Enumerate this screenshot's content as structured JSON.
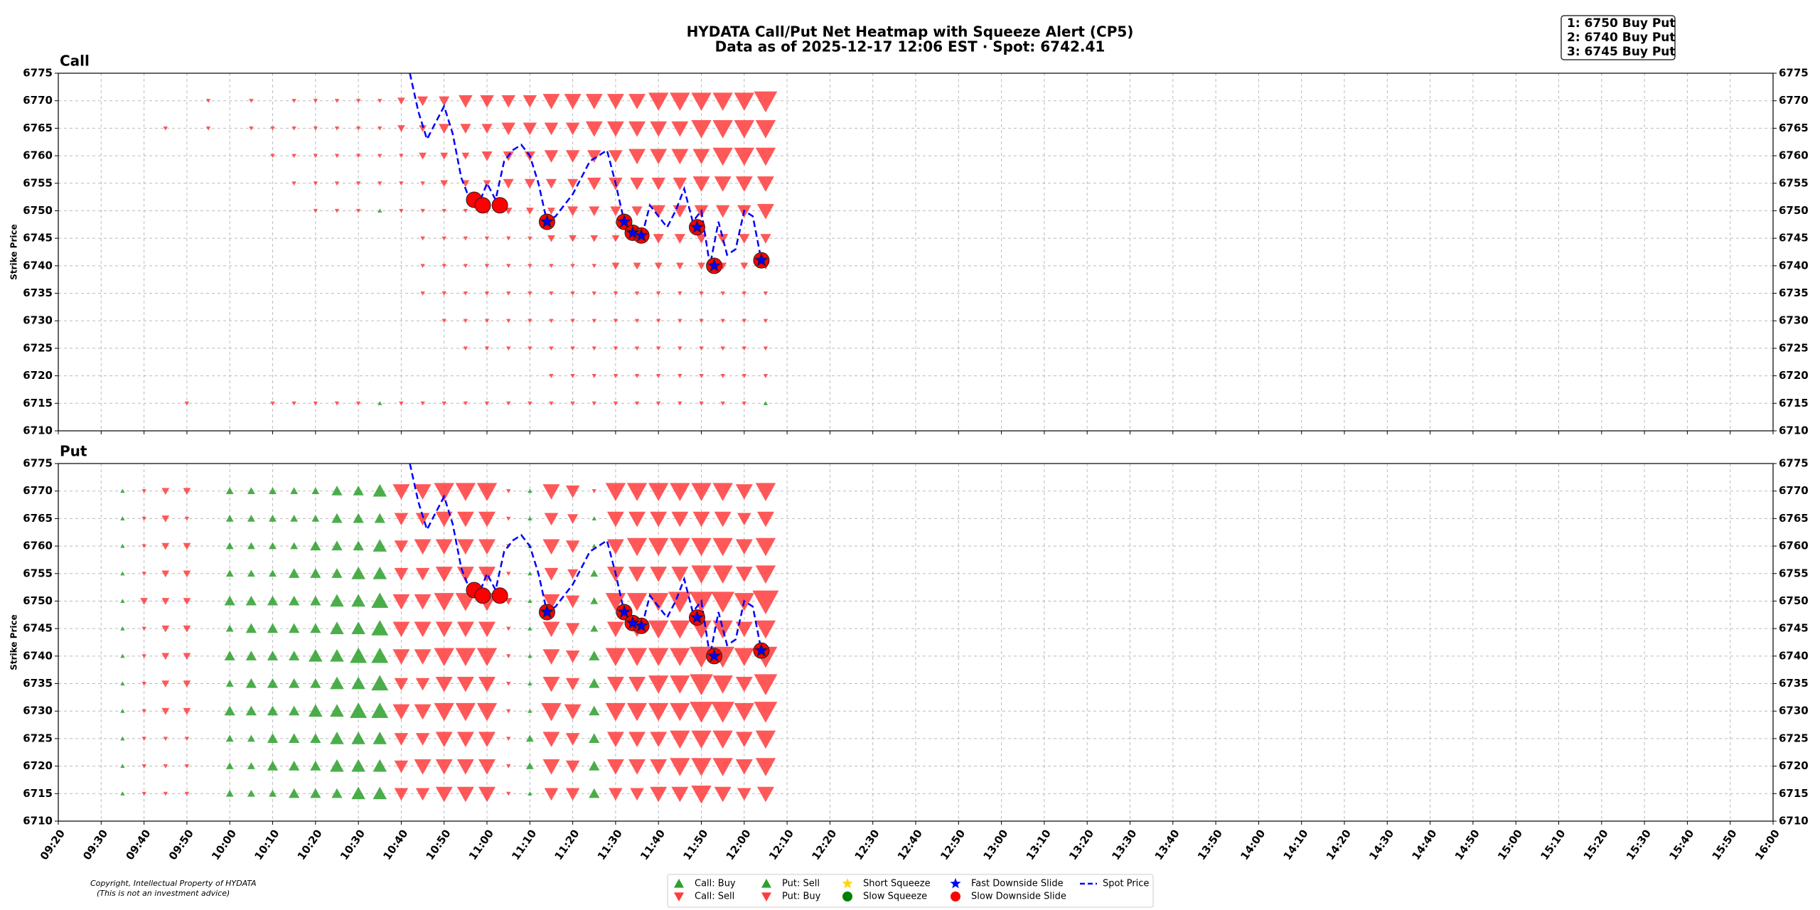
{
  "title": "HYDATA Call/Put Net Heatmap with Squeeze Alert (CP5)",
  "subtitle": "Data as of 2025-12-17 12:06 EST · Spot: 6742.41",
  "annotation": [
    "1: 6750 Buy Put",
    "2: 6740 Buy Put",
    "3: 6745 Buy Put"
  ],
  "footer": [
    "Copyright, Intellectual Property of HYDATA",
    "(This is not an investment advice)"
  ],
  "legend": [
    {
      "name": "Call: Buy",
      "color": "#2ca02c",
      "marker": "triangle-up"
    },
    {
      "name": "Call: Sell",
      "color": "#ff3b3b",
      "marker": "triangle-down"
    },
    {
      "name": "Put: Sell",
      "color": "#2ca02c",
      "marker": "triangle-up"
    },
    {
      "name": "Put: Buy",
      "color": "#ff3b3b",
      "marker": "triangle-down"
    },
    {
      "name": "Short Squeeze",
      "color": "#ffd700",
      "marker": "star"
    },
    {
      "name": "Slow Squeeze",
      "color": "#008000",
      "marker": "circle"
    },
    {
      "name": "Fast Downside Slide",
      "color": "#0000ff",
      "marker": "star"
    },
    {
      "name": "Slow Downside Slide",
      "color": "#ff0000",
      "marker": "circle"
    },
    {
      "name": "Spot Price",
      "color": "#0000ff",
      "marker": "dash"
    }
  ],
  "series": [
    {
      "name": "Spot Price",
      "kind": "line",
      "color": "#0000ff",
      "x": [
        "10:42",
        "10:44",
        "10:46",
        "10:48",
        "10:50",
        "10:52",
        "10:54",
        "10:56",
        "10:58",
        "11:00",
        "11:02",
        "11:04",
        "11:06",
        "11:08",
        "11:10",
        "11:12",
        "11:14",
        "11:16",
        "11:18",
        "11:20",
        "11:22",
        "11:24",
        "11:26",
        "11:28",
        "11:30",
        "11:32",
        "11:34",
        "11:36",
        "11:38",
        "11:40",
        "11:42",
        "11:44",
        "11:46",
        "11:48",
        "11:50",
        "11:52",
        "11:54",
        "11:56",
        "11:58",
        "12:00",
        "12:02",
        "12:04"
      ],
      "values": [
        6775,
        6768,
        6763,
        6766,
        6769,
        6764,
        6756,
        6752,
        6751,
        6755,
        6752,
        6759,
        6761,
        6762,
        6760,
        6755,
        6748,
        6749,
        6751,
        6753,
        6756,
        6759,
        6760,
        6761,
        6755,
        6748,
        6746,
        6745,
        6751,
        6749,
        6747,
        6750,
        6754,
        6748,
        6750,
        6740,
        6748,
        6742,
        6743,
        6750,
        6749,
        6741
      ]
    },
    {
      "name": "Slow Downside Slide",
      "kind": "circle",
      "color": "#ff0000",
      "x": [
        "10:57",
        "10:59",
        "11:03",
        "11:14",
        "11:32",
        "11:34",
        "11:36",
        "11:49",
        "11:53",
        "12:04"
      ],
      "values": [
        6752,
        6751,
        6751,
        6748,
        6748,
        6746,
        6745.5,
        6747,
        6740,
        6741
      ]
    },
    {
      "name": "Fast Downside Slide",
      "kind": "star",
      "color": "#0000ff",
      "x": [
        "11:14",
        "11:32",
        "11:34",
        "11:36",
        "11:49",
        "11:53",
        "12:04"
      ],
      "values": [
        6748,
        6748,
        6746,
        6745.5,
        6747,
        6740,
        6741
      ]
    }
  ],
  "chart_data": [
    {
      "type": "marker_heatmap",
      "title": "Call",
      "ylabel": "Strike Price",
      "up_color": "#2ca02c",
      "down_color": "#ff3b3b",
      "xlim": [
        "09:20",
        "16:00"
      ],
      "xticks": [
        "09:20",
        "09:30",
        "09:40",
        "09:50",
        "10:00",
        "10:10",
        "10:20",
        "10:30",
        "10:40",
        "10:50",
        "11:00",
        "11:10",
        "11:20",
        "11:30",
        "11:40",
        "11:50",
        "12:00",
        "12:10",
        "12:20",
        "12:30",
        "12:40",
        "12:50",
        "13:00",
        "13:10",
        "13:20",
        "13:30",
        "13:40",
        "13:50",
        "14:00",
        "14:10",
        "14:20",
        "14:30",
        "14:40",
        "14:50",
        "15:00",
        "15:10",
        "15:20",
        "15:30",
        "15:40",
        "15:50",
        "16:00"
      ],
      "ylim": [
        6710,
        6775
      ],
      "yticks": [
        6710,
        6715,
        6720,
        6725,
        6730,
        6735,
        6740,
        6745,
        6750,
        6755,
        6760,
        6765,
        6770,
        6775
      ],
      "times": [
        "09:35",
        "09:40",
        "09:45",
        "09:50",
        "09:55",
        "10:00",
        "10:05",
        "10:10",
        "10:15",
        "10:20",
        "10:25",
        "10:30",
        "10:35",
        "10:40",
        "10:45",
        "10:50",
        "10:55",
        "11:00",
        "11:05",
        "11:10",
        "11:15",
        "11:20",
        "11:25",
        "11:30",
        "11:35",
        "11:40",
        "11:45",
        "11:50",
        "11:55",
        "12:00",
        "12:05"
      ],
      "strikes": [
        6770,
        6765,
        6760,
        6755,
        6750,
        6745,
        6740,
        6735,
        6730,
        6725,
        6720,
        6715
      ],
      "net": [
        [
          0,
          0,
          0,
          0,
          -1,
          0,
          -1,
          0,
          -1,
          -1,
          -1,
          -1,
          -1,
          -2,
          -3,
          -3,
          -4,
          -4,
          -4,
          -4,
          -5,
          -5,
          -5,
          -5,
          -5,
          -6,
          -6,
          -6,
          -6,
          -6,
          -7
        ],
        [
          0,
          0,
          -1,
          0,
          -1,
          0,
          -1,
          -1,
          -1,
          -1,
          -1,
          -1,
          -1,
          -2,
          -2,
          -3,
          -3,
          -3,
          -4,
          -4,
          -4,
          -4,
          -5,
          -5,
          -5,
          -5,
          -5,
          -6,
          -6,
          -6,
          -6
        ],
        [
          0,
          0,
          0,
          0,
          0,
          0,
          0,
          -1,
          -1,
          -1,
          -1,
          -1,
          -1,
          -1,
          -2,
          -2,
          -2,
          -3,
          -3,
          -3,
          -4,
          -4,
          -4,
          -4,
          -5,
          -5,
          -5,
          -5,
          -6,
          -6,
          -6
        ],
        [
          0,
          0,
          0,
          0,
          0,
          0,
          0,
          0,
          -1,
          -1,
          -1,
          -1,
          -1,
          -1,
          -1,
          -2,
          -2,
          -2,
          -3,
          -3,
          -3,
          -3,
          -4,
          -4,
          -4,
          -4,
          -4,
          -5,
          -5,
          -5,
          -5
        ],
        [
          0,
          0,
          0,
          0,
          0,
          0,
          0,
          0,
          0,
          -1,
          -1,
          -1,
          1,
          -1,
          -1,
          -1,
          -1,
          -2,
          -2,
          -2,
          -2,
          -3,
          -3,
          -3,
          -3,
          -4,
          -4,
          -4,
          -4,
          -4,
          -5
        ],
        [
          0,
          0,
          0,
          0,
          0,
          0,
          0,
          0,
          0,
          0,
          0,
          0,
          0,
          0,
          -1,
          -1,
          -1,
          -1,
          -1,
          -1,
          -2,
          -2,
          -2,
          -2,
          -2,
          -3,
          -3,
          -3,
          -3,
          -3,
          -3
        ],
        [
          0,
          0,
          0,
          0,
          0,
          0,
          0,
          0,
          0,
          0,
          0,
          0,
          0,
          0,
          -1,
          -1,
          -1,
          -1,
          -1,
          -1,
          -1,
          -1,
          -1,
          -2,
          -2,
          -2,
          -2,
          -2,
          -2,
          -2,
          -2
        ],
        [
          0,
          0,
          0,
          0,
          0,
          0,
          0,
          0,
          0,
          0,
          0,
          0,
          0,
          0,
          -1,
          -1,
          -1,
          -1,
          -1,
          -1,
          -1,
          -1,
          -1,
          -1,
          -1,
          -1,
          -1,
          -1,
          -1,
          -1,
          -1
        ],
        [
          0,
          0,
          0,
          0,
          0,
          0,
          0,
          0,
          0,
          0,
          0,
          0,
          0,
          0,
          0,
          -1,
          -1,
          -1,
          -1,
          -1,
          -1,
          -1,
          -1,
          -1,
          -1,
          -1,
          -1,
          -1,
          -1,
          -1,
          -1
        ],
        [
          0,
          0,
          0,
          0,
          0,
          0,
          0,
          0,
          0,
          0,
          0,
          0,
          0,
          0,
          0,
          0,
          -1,
          -1,
          -1,
          -1,
          -1,
          -1,
          -1,
          -1,
          -1,
          -1,
          -1,
          -1,
          -1,
          -1,
          -1
        ],
        [
          0,
          0,
          0,
          0,
          0,
          0,
          0,
          0,
          0,
          0,
          0,
          0,
          0,
          0,
          0,
          0,
          0,
          0,
          0,
          0,
          -1,
          -1,
          -1,
          -1,
          -1,
          -1,
          -1,
          -1,
          -1,
          -1,
          -1
        ],
        [
          0,
          0,
          0,
          -1,
          0,
          0,
          0,
          -1,
          -1,
          -1,
          -1,
          -1,
          1,
          -1,
          -1,
          -1,
          -1,
          -1,
          -1,
          -1,
          -1,
          -1,
          -1,
          -1,
          -1,
          -1,
          -1,
          -1,
          -1,
          -1,
          1
        ]
      ]
    },
    {
      "type": "marker_heatmap",
      "title": "Put",
      "ylabel": "Strike Price",
      "up_color": "#2ca02c",
      "down_color": "#ff3b3b",
      "xlim": [
        "09:20",
        "16:00"
      ],
      "xticks": [
        "09:20",
        "09:30",
        "09:40",
        "09:50",
        "10:00",
        "10:10",
        "10:20",
        "10:30",
        "10:40",
        "10:50",
        "11:00",
        "11:10",
        "11:20",
        "11:30",
        "11:40",
        "11:50",
        "12:00",
        "12:10",
        "12:20",
        "12:30",
        "12:40",
        "12:50",
        "13:00",
        "13:10",
        "13:20",
        "13:30",
        "13:40",
        "13:50",
        "14:00",
        "14:10",
        "14:20",
        "14:30",
        "14:40",
        "14:50",
        "15:00",
        "15:10",
        "15:20",
        "15:30",
        "15:40",
        "15:50",
        "16:00"
      ],
      "ylim": [
        6710,
        6775
      ],
      "yticks": [
        6710,
        6715,
        6720,
        6725,
        6730,
        6735,
        6740,
        6745,
        6750,
        6755,
        6760,
        6765,
        6770,
        6775
      ],
      "times": [
        "09:35",
        "09:40",
        "09:45",
        "09:50",
        "09:55",
        "10:00",
        "10:05",
        "10:10",
        "10:15",
        "10:20",
        "10:25",
        "10:30",
        "10:35",
        "10:40",
        "10:45",
        "10:50",
        "10:55",
        "11:00",
        "11:05",
        "11:10",
        "11:15",
        "11:20",
        "11:25",
        "11:30",
        "11:35",
        "11:40",
        "11:45",
        "11:50",
        "11:55",
        "12:00",
        "12:05"
      ],
      "strikes": [
        6770,
        6765,
        6760,
        6755,
        6750,
        6745,
        6740,
        6735,
        6730,
        6725,
        6720,
        6715
      ],
      "net": [
        [
          1,
          -1,
          -2,
          -2,
          0,
          2,
          2,
          2,
          2,
          2,
          3,
          3,
          4,
          -5,
          -5,
          -6,
          -6,
          -6,
          -1,
          1,
          -5,
          -4,
          -1,
          -6,
          -6,
          -6,
          -6,
          -6,
          -6,
          -5,
          -6
        ],
        [
          1,
          -1,
          -2,
          -1,
          0,
          2,
          2,
          2,
          2,
          2,
          3,
          3,
          3,
          -4,
          -4,
          -5,
          -5,
          -5,
          -1,
          1,
          -4,
          -3,
          1,
          -5,
          -5,
          -5,
          -5,
          -5,
          -5,
          -4,
          -5
        ],
        [
          1,
          -1,
          -2,
          -2,
          0,
          2,
          2,
          2,
          2,
          3,
          3,
          3,
          4,
          -4,
          -5,
          -5,
          -5,
          -5,
          -1,
          1,
          -5,
          -4,
          1,
          -5,
          -6,
          -6,
          -6,
          -6,
          -6,
          -5,
          -6
        ],
        [
          1,
          -1,
          -2,
          -2,
          0,
          2,
          2,
          2,
          3,
          3,
          3,
          4,
          4,
          -4,
          -4,
          -5,
          -5,
          -5,
          -1,
          1,
          -4,
          -3,
          2,
          -5,
          -5,
          -5,
          -5,
          -6,
          -6,
          -5,
          -6
        ],
        [
          1,
          -2,
          -2,
          -2,
          0,
          3,
          3,
          3,
          3,
          3,
          4,
          4,
          5,
          -5,
          -5,
          -6,
          -6,
          -6,
          -2,
          1,
          -5,
          -4,
          2,
          -6,
          -6,
          -6,
          -7,
          -7,
          -7,
          -6,
          -8
        ],
        [
          1,
          -1,
          -2,
          -2,
          0,
          2,
          3,
          3,
          3,
          3,
          4,
          4,
          5,
          -5,
          -5,
          -5,
          -5,
          -5,
          -1,
          1,
          -5,
          -4,
          2,
          -5,
          -5,
          -6,
          -6,
          -6,
          -6,
          -5,
          -6
        ],
        [
          1,
          -1,
          -2,
          -2,
          0,
          3,
          3,
          3,
          3,
          4,
          4,
          5,
          5,
          -5,
          -5,
          -6,
          -6,
          -6,
          -1,
          1,
          -5,
          -4,
          3,
          -6,
          -6,
          -6,
          -6,
          -7,
          -7,
          -6,
          -7
        ],
        [
          1,
          -1,
          -2,
          -2,
          0,
          2,
          3,
          3,
          3,
          3,
          4,
          4,
          5,
          -4,
          -4,
          -5,
          -5,
          -5,
          -1,
          1,
          -5,
          -4,
          3,
          -5,
          -5,
          -6,
          -6,
          -7,
          -6,
          -5,
          -7
        ],
        [
          1,
          -1,
          -2,
          -2,
          0,
          3,
          3,
          3,
          3,
          4,
          4,
          5,
          5,
          -5,
          -5,
          -6,
          -6,
          -6,
          -1,
          1,
          -6,
          -5,
          3,
          -6,
          -6,
          -6,
          -6,
          -7,
          -7,
          -6,
          -7
        ],
        [
          1,
          -1,
          -1,
          -1,
          0,
          2,
          2,
          3,
          3,
          3,
          4,
          4,
          4,
          -4,
          -4,
          -5,
          -5,
          -5,
          -1,
          2,
          -5,
          -4,
          3,
          -5,
          -5,
          -5,
          -6,
          -6,
          -6,
          -5,
          -6
        ],
        [
          1,
          -1,
          -1,
          -1,
          0,
          2,
          2,
          3,
          3,
          3,
          4,
          4,
          4,
          -4,
          -5,
          -5,
          -5,
          -5,
          -1,
          2,
          -5,
          -4,
          3,
          -5,
          -5,
          -5,
          -6,
          -6,
          -6,
          -5,
          -6
        ],
        [
          1,
          -1,
          -1,
          -1,
          0,
          2,
          2,
          2,
          3,
          3,
          3,
          4,
          4,
          -4,
          -4,
          -5,
          -5,
          -5,
          -1,
          1,
          -4,
          -4,
          3,
          -4,
          -4,
          -5,
          -5,
          -6,
          -5,
          -4,
          -5
        ]
      ]
    }
  ]
}
